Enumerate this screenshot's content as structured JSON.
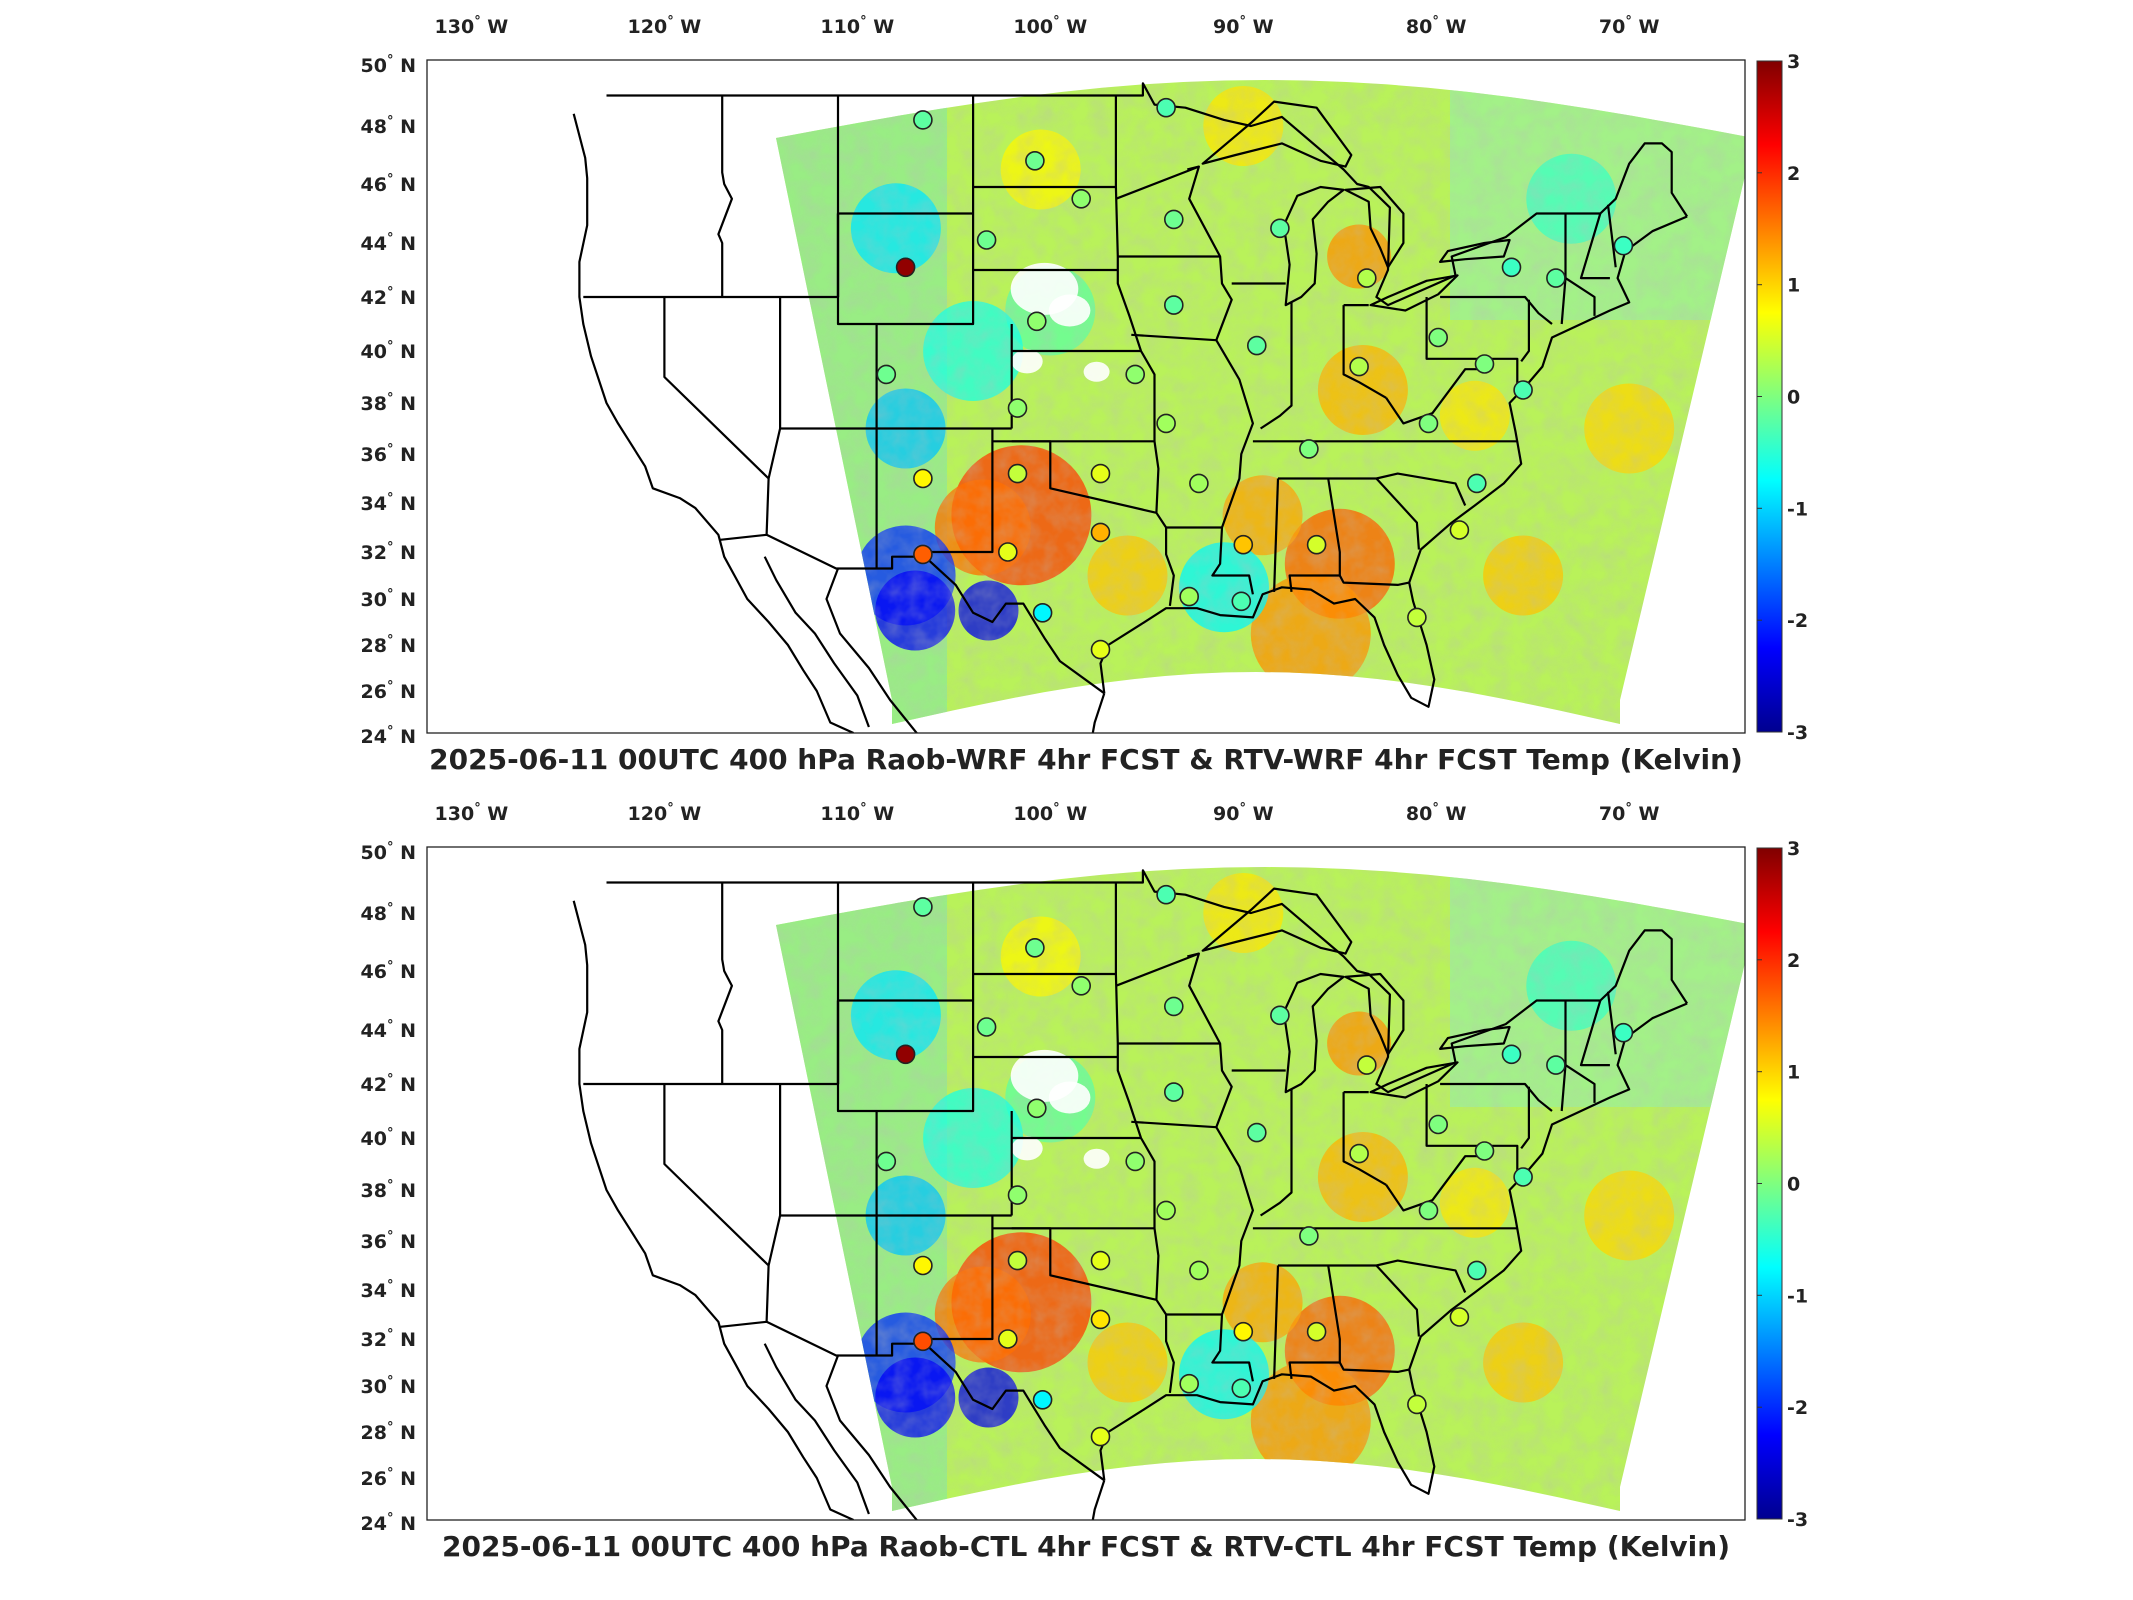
{
  "chart_data": [
    {
      "type": "heatmap",
      "title": "2025-06-11 00UTC 400 hPa Raob-WRF 4hr FCST & RTV-WRF 4hr FCST Temp (Kelvin)",
      "lon_ticks": [
        "130",
        "120",
        "110",
        "100",
        "90",
        "80",
        "70"
      ],
      "lon_suffix": "W",
      "lat_ticks": [
        "50",
        "48",
        "46",
        "44",
        "42",
        "40",
        "38",
        "36",
        "34",
        "32",
        "30",
        "28",
        "26",
        "24"
      ],
      "lat_suffix": "N",
      "colorbar": {
        "min": -3,
        "max": 3,
        "ticks": [
          "3",
          "2",
          "1",
          "0",
          "-1",
          "-2",
          "-3"
        ]
      },
      "stations": [
        {
          "lon": -107.5,
          "lat": 43.1,
          "value": 2.9
        },
        {
          "lon": -106.6,
          "lat": 31.9,
          "value": 1.7
        },
        {
          "lon": -97.4,
          "lat": 32.8,
          "value": 1.2
        },
        {
          "lon": -90.0,
          "lat": 32.3,
          "value": 1.1
        },
        {
          "lon": -106.6,
          "lat": 35.0,
          "value": 0.8
        },
        {
          "lon": -102.2,
          "lat": 32.0,
          "value": 0.6
        },
        {
          "lon": -97.4,
          "lat": 27.8,
          "value": 0.6
        },
        {
          "lon": -97.4,
          "lat": 35.2,
          "value": 0.6
        },
        {
          "lon": -86.2,
          "lat": 32.3,
          "value": 0.5
        },
        {
          "lon": -78.8,
          "lat": 32.9,
          "value": 0.5
        },
        {
          "lon": -81.0,
          "lat": 29.2,
          "value": 0.4
        },
        {
          "lon": -101.7,
          "lat": 35.2,
          "value": 0.4
        },
        {
          "lon": -83.6,
          "lat": 42.7,
          "value": 0.3
        },
        {
          "lon": -84.0,
          "lat": 39.4,
          "value": 0.3
        },
        {
          "lon": -92.3,
          "lat": 34.8,
          "value": 0.2
        },
        {
          "lon": -92.8,
          "lat": 30.1,
          "value": 0.2
        },
        {
          "lon": -94.0,
          "lat": 37.2,
          "value": 0.2
        },
        {
          "lon": -98.4,
          "lat": 45.5,
          "value": 0.1
        },
        {
          "lon": -100.7,
          "lat": 41.1,
          "value": 0.1
        },
        {
          "lon": -95.6,
          "lat": 39.1,
          "value": 0.1
        },
        {
          "lon": -101.7,
          "lat": 37.8,
          "value": 0.1
        },
        {
          "lon": -79.9,
          "lat": 40.5,
          "value": 0.0
        },
        {
          "lon": -77.5,
          "lat": 39.5,
          "value": 0.0
        },
        {
          "lon": -80.4,
          "lat": 37.2,
          "value": 0.0
        },
        {
          "lon": -86.6,
          "lat": 36.2,
          "value": 0.0
        },
        {
          "lon": -108.5,
          "lat": 39.1,
          "value": -0.1
        },
        {
          "lon": -103.3,
          "lat": 44.1,
          "value": -0.1
        },
        {
          "lon": -93.6,
          "lat": 44.8,
          "value": -0.1
        },
        {
          "lon": -100.8,
          "lat": 46.8,
          "value": -0.1
        },
        {
          "lon": -89.3,
          "lat": 40.2,
          "value": -0.2
        },
        {
          "lon": -88.1,
          "lat": 44.5,
          "value": -0.2
        },
        {
          "lon": -93.6,
          "lat": 41.7,
          "value": -0.2
        },
        {
          "lon": -106.6,
          "lat": 48.2,
          "value": -0.2
        },
        {
          "lon": -73.8,
          "lat": 42.7,
          "value": -0.2
        },
        {
          "lon": -77.9,
          "lat": 34.8,
          "value": -0.3
        },
        {
          "lon": -90.1,
          "lat": 29.9,
          "value": -0.3
        },
        {
          "lon": -94.0,
          "lat": 48.6,
          "value": -0.3
        },
        {
          "lon": -75.5,
          "lat": 38.5,
          "value": -0.3
        },
        {
          "lon": -70.3,
          "lat": 43.9,
          "value": -0.4
        },
        {
          "lon": -76.1,
          "lat": 43.1,
          "value": -0.4
        },
        {
          "lon": -100.4,
          "lat": 29.4,
          "value": -0.8
        }
      ]
    },
    {
      "type": "heatmap",
      "title": "2025-06-11 00UTC 400 hPa Raob-CTL 4hr FCST & RTV-CTL 4hr FCST Temp (Kelvin)",
      "lon_ticks": [
        "130",
        "120",
        "110",
        "100",
        "90",
        "80",
        "70"
      ],
      "lon_suffix": "W",
      "lat_ticks": [
        "50",
        "48",
        "46",
        "44",
        "42",
        "40",
        "38",
        "36",
        "34",
        "32",
        "30",
        "28",
        "26",
        "24"
      ],
      "lat_suffix": "N",
      "colorbar": {
        "min": -3,
        "max": 3,
        "ticks": [
          "3",
          "2",
          "1",
          "0",
          "-1",
          "-2",
          "-3"
        ]
      },
      "stations": [
        {
          "lon": -107.5,
          "lat": 43.1,
          "value": 2.9
        },
        {
          "lon": -106.6,
          "lat": 31.9,
          "value": 1.8
        },
        {
          "lon": -97.4,
          "lat": 32.8,
          "value": 0.9
        },
        {
          "lon": -90.0,
          "lat": 32.3,
          "value": 0.8
        },
        {
          "lon": -106.6,
          "lat": 35.0,
          "value": 0.8
        },
        {
          "lon": -102.2,
          "lat": 32.0,
          "value": 0.6
        },
        {
          "lon": -97.4,
          "lat": 27.8,
          "value": 0.6
        },
        {
          "lon": -97.4,
          "lat": 35.2,
          "value": 0.6
        },
        {
          "lon": -86.2,
          "lat": 32.3,
          "value": 0.5
        },
        {
          "lon": -78.8,
          "lat": 32.9,
          "value": 0.5
        },
        {
          "lon": -81.0,
          "lat": 29.2,
          "value": 0.4
        },
        {
          "lon": -101.7,
          "lat": 35.2,
          "value": 0.4
        },
        {
          "lon": -83.6,
          "lat": 42.7,
          "value": 0.4
        },
        {
          "lon": -84.0,
          "lat": 39.4,
          "value": 0.3
        },
        {
          "lon": -92.3,
          "lat": 34.8,
          "value": 0.2
        },
        {
          "lon": -92.8,
          "lat": 30.1,
          "value": 0.2
        },
        {
          "lon": -94.0,
          "lat": 37.2,
          "value": 0.2
        },
        {
          "lon": -98.4,
          "lat": 45.5,
          "value": 0.1
        },
        {
          "lon": -100.7,
          "lat": 41.1,
          "value": 0.1
        },
        {
          "lon": -95.6,
          "lat": 39.1,
          "value": 0.1
        },
        {
          "lon": -101.7,
          "lat": 37.8,
          "value": 0.1
        },
        {
          "lon": -79.9,
          "lat": 40.5,
          "value": 0.0
        },
        {
          "lon": -77.5,
          "lat": 39.5,
          "value": 0.0
        },
        {
          "lon": -80.4,
          "lat": 37.2,
          "value": 0.0
        },
        {
          "lon": -86.6,
          "lat": 36.2,
          "value": 0.0
        },
        {
          "lon": -108.5,
          "lat": 39.1,
          "value": -0.1
        },
        {
          "lon": -103.3,
          "lat": 44.1,
          "value": -0.1
        },
        {
          "lon": -93.6,
          "lat": 44.8,
          "value": -0.1
        },
        {
          "lon": -100.8,
          "lat": 46.8,
          "value": -0.1
        },
        {
          "lon": -89.3,
          "lat": 40.2,
          "value": -0.2
        },
        {
          "lon": -88.1,
          "lat": 44.5,
          "value": -0.2
        },
        {
          "lon": -93.6,
          "lat": 41.7,
          "value": -0.2
        },
        {
          "lon": -106.6,
          "lat": 48.2,
          "value": -0.2
        },
        {
          "lon": -73.8,
          "lat": 42.7,
          "value": -0.2
        },
        {
          "lon": -77.9,
          "lat": 34.8,
          "value": -0.3
        },
        {
          "lon": -90.1,
          "lat": 29.9,
          "value": -0.3
        },
        {
          "lon": -94.0,
          "lat": 48.6,
          "value": -0.3
        },
        {
          "lon": -75.5,
          "lat": 38.5,
          "value": -0.3
        },
        {
          "lon": -70.3,
          "lat": 43.9,
          "value": -0.4
        },
        {
          "lon": -76.1,
          "lat": 43.1,
          "value": -0.4
        },
        {
          "lon": -100.4,
          "lat": 29.4,
          "value": -0.8
        }
      ]
    }
  ]
}
